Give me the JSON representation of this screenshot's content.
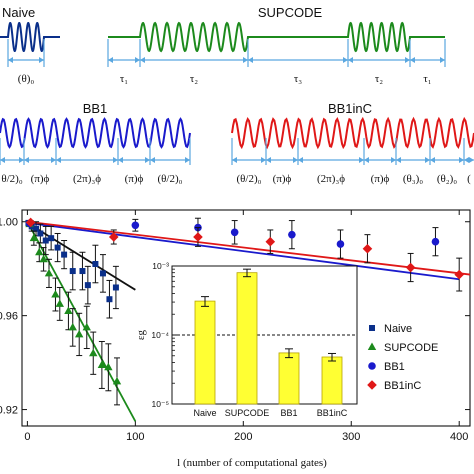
{
  "colors": {
    "naive": "#0a2f8a",
    "supcode": "#1c8a1c",
    "bb1": "#1a1acc",
    "bb1inc": "#e01818",
    "dimension": "#5aa7e0",
    "naive_fit": "#111111",
    "bar": "#ffff33",
    "bar_edge": "#b8a400"
  },
  "sequences": {
    "naive": {
      "title": "Naive",
      "labels": [
        "(θ)₀"
      ]
    },
    "supcode": {
      "title": "SUPCODE",
      "labels": [
        "τ₁",
        "τ₂",
        "τ₃",
        "τ₂",
        "τ₁"
      ]
    },
    "bb1": {
      "title": "BB1",
      "labels": [
        "θ/2)₀",
        "(π)ϕ",
        "(2π)₃ϕ",
        "(π)ϕ",
        "(θ/2)₀"
      ]
    },
    "bb1inc": {
      "title": "BB1inC",
      "labels": [
        "(θ/2)₀",
        "(π)ϕ",
        "(2π)₃ϕ",
        "(π)ϕ",
        "(θ₃)₀",
        "(θ₂)₀",
        "("
      ]
    }
  },
  "chart_data": [
    {
      "type": "scatter",
      "title": "",
      "xlabel": "l (number of computational gates)",
      "ylabel": "",
      "xlim": [
        -5,
        410
      ],
      "ylim": [
        0.913,
        1.005
      ],
      "xticks": [
        0,
        100,
        200,
        300,
        400
      ],
      "yticks": [
        0.92,
        0.96,
        1.0
      ],
      "ytick_labels": [
        "0.92",
        "0.96",
        "1.00"
      ],
      "legend_position": "right",
      "series": [
        {
          "name": "Naive",
          "marker": "square",
          "color_key": "naive",
          "points": [
            {
              "x": 1,
              "y": 0.9995,
              "err": 0.001
            },
            {
              "x": 4,
              "y": 0.998,
              "err": 0.002
            },
            {
              "x": 8,
              "y": 0.997,
              "err": 0.003
            },
            {
              "x": 12,
              "y": 0.995,
              "err": 0.004
            },
            {
              "x": 17,
              "y": 0.992,
              "err": 0.006
            },
            {
              "x": 22,
              "y": 0.993,
              "err": 0.005
            },
            {
              "x": 28,
              "y": 0.989,
              "err": 0.006
            },
            {
              "x": 34,
              "y": 0.986,
              "err": 0.006
            },
            {
              "x": 42,
              "y": 0.979,
              "err": 0.008
            },
            {
              "x": 51,
              "y": 0.979,
              "err": 0.008
            },
            {
              "x": 56,
              "y": 0.973,
              "err": 0.008
            },
            {
              "x": 63,
              "y": 0.982,
              "err": 0.008
            },
            {
              "x": 70,
              "y": 0.978,
              "err": 0.008
            },
            {
              "x": 76,
              "y": 0.967,
              "err": 0.008
            },
            {
              "x": 82,
              "y": 0.972,
              "err": 0.009
            }
          ],
          "fit": [
            [
              0,
              0.9995
            ],
            [
              100,
              0.971
            ]
          ]
        },
        {
          "name": "SUPCODE",
          "marker": "triangle",
          "color_key": "supcode",
          "points": [
            {
              "x": 2,
              "y": 0.999,
              "err": 0.001
            },
            {
              "x": 6,
              "y": 0.993,
              "err": 0.003
            },
            {
              "x": 11,
              "y": 0.987,
              "err": 0.004
            },
            {
              "x": 15,
              "y": 0.984,
              "err": 0.005
            },
            {
              "x": 20,
              "y": 0.978,
              "err": 0.006
            },
            {
              "x": 26,
              "y": 0.969,
              "err": 0.007
            },
            {
              "x": 30,
              "y": 0.965,
              "err": 0.007
            },
            {
              "x": 38,
              "y": 0.962,
              "err": 0.008
            },
            {
              "x": 42,
              "y": 0.955,
              "err": 0.008
            },
            {
              "x": 48,
              "y": 0.952,
              "err": 0.009
            },
            {
              "x": 55,
              "y": 0.955,
              "err": 0.009
            },
            {
              "x": 61,
              "y": 0.944,
              "err": 0.009
            },
            {
              "x": 69,
              "y": 0.939,
              "err": 0.01
            },
            {
              "x": 75,
              "y": 0.938,
              "err": 0.01
            },
            {
              "x": 83,
              "y": 0.932,
              "err": 0.01
            }
          ],
          "fit": [
            [
              0,
              1.0
            ],
            [
              100,
              0.915
            ]
          ]
        },
        {
          "name": "BB1",
          "marker": "circle",
          "color_key": "bb1",
          "points": [
            {
              "x": 2,
              "y": 0.9993,
              "err": 0.0008
            },
            {
              "x": 100,
              "y": 0.9985,
              "err": 0.0025
            },
            {
              "x": 158,
              "y": 0.9975,
              "err": 0.004
            },
            {
              "x": 192,
              "y": 0.9955,
              "err": 0.005
            },
            {
              "x": 245,
              "y": 0.9945,
              "err": 0.006
            },
            {
              "x": 290,
              "y": 0.9905,
              "err": 0.006
            },
            {
              "x": 378,
              "y": 0.9915,
              "err": 0.006
            }
          ],
          "fit": [
            [
              0,
              0.9995
            ],
            [
              400,
              0.9755
            ]
          ]
        },
        {
          "name": "BB1inC",
          "marker": "diamond",
          "color_key": "bb1inc",
          "points": [
            {
              "x": 3,
              "y": 0.9997,
              "err": 0.0008
            },
            {
              "x": 80,
              "y": 0.9935,
              "err": 0.003
            },
            {
              "x": 158,
              "y": 0.9935,
              "err": 0.004
            },
            {
              "x": 225,
              "y": 0.9915,
              "err": 0.005
            },
            {
              "x": 315,
              "y": 0.9885,
              "err": 0.006
            },
            {
              "x": 355,
              "y": 0.9805,
              "err": 0.006
            },
            {
              "x": 400,
              "y": 0.9775,
              "err": 0.007
            }
          ],
          "fit": [
            [
              0,
              1.0
            ],
            [
              410,
              0.9775
            ]
          ]
        }
      ]
    },
    {
      "type": "bar",
      "title": "",
      "ylabel": "εg",
      "yscale": "log",
      "ylim": [
        1e-05,
        0.001
      ],
      "yticks": [
        1e-05,
        0.0001,
        0.001
      ],
      "ytick_labels": [
        "10⁻⁵",
        "10⁻⁴",
        "10⁻³"
      ],
      "reference_line": 0.0001,
      "categories": [
        "Naive",
        "SUPCODE",
        "BB1",
        "BB1inC"
      ],
      "values": [
        0.00031,
        0.0008,
        5.5e-05,
        4.8e-05
      ],
      "errors": [
        5e-05,
        0.0001,
        8e-06,
        6e-06
      ]
    }
  ]
}
